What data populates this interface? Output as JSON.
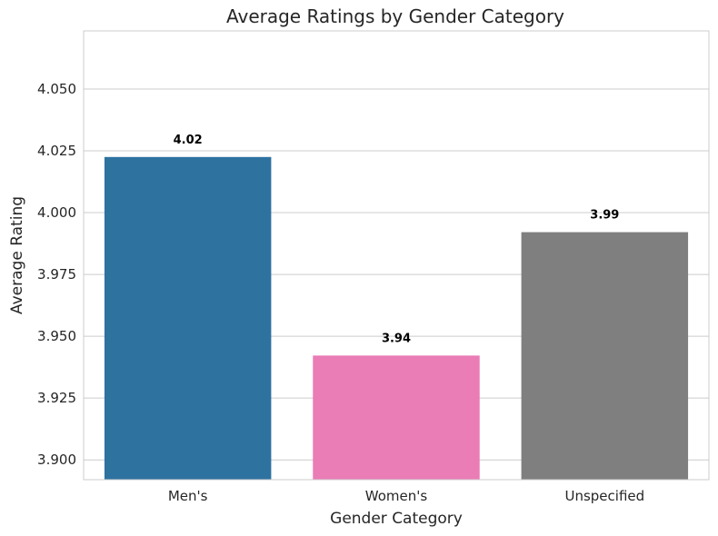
{
  "chart_data": {
    "type": "bar",
    "title": "Average Ratings by Gender Category",
    "xlabel": "Gender Category",
    "ylabel": "Average Rating",
    "categories": [
      "Men's",
      "Women's",
      "Unspecified"
    ],
    "values": [
      4.0225,
      3.9422,
      3.9921
    ],
    "value_labels": [
      "4.02",
      "3.94",
      "3.99"
    ],
    "colors": [
      "#2e72a0",
      "#ea7cb6",
      "#7f7f7f"
    ],
    "ylim": [
      3.892,
      4.0735
    ],
    "yticks": [
      3.9,
      3.925,
      3.95,
      3.975,
      4.0,
      4.025,
      4.05
    ],
    "ytick_labels": [
      "3.900",
      "3.925",
      "3.950",
      "3.975",
      "4.000",
      "4.025",
      "4.050"
    ],
    "grid": "horizontal",
    "legend": "none"
  }
}
